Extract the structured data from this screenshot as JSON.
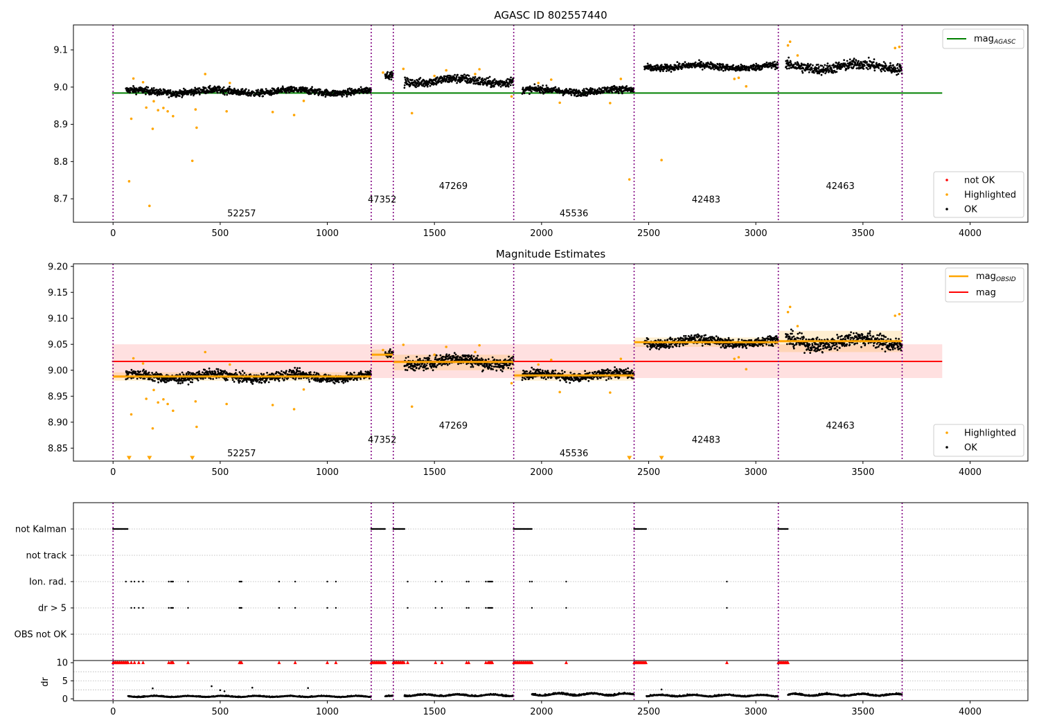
{
  "chart_data": [
    {
      "type": "scatter",
      "title": "AGASC ID 802557440",
      "xlabel": "",
      "ylabel": "",
      "xlim": [
        -185,
        4270
      ],
      "ylim": [
        8.637,
        9.167
      ],
      "xticks": [
        0,
        500,
        1000,
        1500,
        2000,
        2500,
        3000,
        3500,
        4000
      ],
      "yticks": [
        8.7,
        8.8,
        8.9,
        9.0,
        9.1
      ],
      "ytick_labels": [
        "8.7",
        "8.8",
        "8.9",
        "9.0",
        "9.1"
      ],
      "obsid_boundaries": [
        0,
        1205,
        1308,
        1870,
        2432,
        3105,
        3683
      ],
      "obsid_labels": [
        {
          "text": "52257",
          "x": 600,
          "y": 8.66
        },
        {
          "text": "47352",
          "x": 1256,
          "y": 8.697
        },
        {
          "text": "47269",
          "x": 1588,
          "y": 8.734
        },
        {
          "text": "45536",
          "x": 2151,
          "y": 8.66
        },
        {
          "text": "42483",
          "x": 2768,
          "y": 8.697
        },
        {
          "text": "42463",
          "x": 3394,
          "y": 8.734
        }
      ],
      "reference_line": {
        "name": "mag_AGASC",
        "y": 8.984,
        "x0": -5,
        "x1": 3870,
        "color": "#008000"
      },
      "segments": [
        {
          "x0": 60,
          "x1": 1205,
          "mean": 8.988,
          "spread": 0.009
        },
        {
          "x0": 1270,
          "x1": 1308,
          "mean": 9.03,
          "spread": 0.009
        },
        {
          "x0": 1360,
          "x1": 1870,
          "mean": 9.017,
          "spread": 0.012
        },
        {
          "x0": 1910,
          "x1": 2432,
          "mean": 8.99,
          "spread": 0.009
        },
        {
          "x0": 2480,
          "x1": 3105,
          "mean": 9.055,
          "spread": 0.009
        },
        {
          "x0": 3140,
          "x1": 3683,
          "mean": 9.055,
          "spread": 0.014
        }
      ],
      "highlighted_points": [
        [
          75,
          8.747
        ],
        [
          85,
          8.915
        ],
        [
          95,
          9.023
        ],
        [
          140,
          9.013
        ],
        [
          155,
          8.945
        ],
        [
          170,
          8.681
        ],
        [
          185,
          8.888
        ],
        [
          190,
          8.962
        ],
        [
          210,
          8.938
        ],
        [
          235,
          8.944
        ],
        [
          255,
          8.935
        ],
        [
          280,
          8.922
        ],
        [
          370,
          8.802
        ],
        [
          385,
          8.94
        ],
        [
          390,
          8.891
        ],
        [
          430,
          9.035
        ],
        [
          530,
          8.935
        ],
        [
          545,
          9.011
        ],
        [
          745,
          8.933
        ],
        [
          845,
          8.925
        ],
        [
          890,
          8.963
        ],
        [
          1260,
          9.039
        ],
        [
          1355,
          9.049
        ],
        [
          1395,
          8.93
        ],
        [
          1500,
          9.03
        ],
        [
          1555,
          9.045
        ],
        [
          1690,
          9.035
        ],
        [
          1710,
          9.048
        ],
        [
          1860,
          8.975
        ],
        [
          1985,
          9.011
        ],
        [
          2045,
          9.02
        ],
        [
          2085,
          8.958
        ],
        [
          2320,
          8.957
        ],
        [
          2370,
          9.022
        ],
        [
          2410,
          8.752
        ],
        [
          2560,
          8.804
        ],
        [
          2900,
          9.022
        ],
        [
          2920,
          9.025
        ],
        [
          2955,
          9.002
        ],
        [
          3150,
          9.112
        ],
        [
          3160,
          9.122
        ],
        [
          3195,
          9.085
        ],
        [
          3650,
          9.105
        ],
        [
          3670,
          9.108
        ]
      ],
      "legend": {
        "position": "top-right",
        "entries": [
          {
            "label": "mag",
            "sub": "AGASC",
            "color": "#008000"
          }
        ]
      },
      "legend2": {
        "position": "bottom-right",
        "entries": [
          {
            "label": "not OK",
            "color": "#ff0000"
          },
          {
            "label": "Highlighted",
            "color": "#ffa500"
          },
          {
            "label": "OK",
            "color": "#000000"
          }
        ]
      }
    },
    {
      "type": "scatter",
      "title": "Magnitude Estimates",
      "xlabel": "",
      "ylabel": "",
      "xlim": [
        -185,
        4270
      ],
      "ylim": [
        8.825,
        9.205
      ],
      "xticks": [
        0,
        500,
        1000,
        1500,
        2000,
        2500,
        3000,
        3500,
        4000
      ],
      "yticks": [
        8.85,
        8.9,
        8.95,
        9.0,
        9.05,
        9.1,
        9.15,
        9.2
      ],
      "ytick_labels": [
        "8.85",
        "8.90",
        "8.95",
        "9.00",
        "9.05",
        "9.10",
        "9.15",
        "9.20"
      ],
      "obsid_boundaries": [
        0,
        1205,
        1308,
        1870,
        2432,
        3105,
        3683
      ],
      "obsid_labels": [
        {
          "text": "52257",
          "x": 600,
          "y": 8.84
        },
        {
          "text": "47352",
          "x": 1256,
          "y": 8.866
        },
        {
          "text": "47269",
          "x": 1588,
          "y": 8.893
        },
        {
          "text": "45536",
          "x": 2151,
          "y": 8.84
        },
        {
          "text": "42483",
          "x": 2768,
          "y": 8.866
        },
        {
          "text": "42463",
          "x": 3394,
          "y": 8.893
        }
      ],
      "mag_line": {
        "name": "mag",
        "y": 9.017,
        "band": [
          8.985,
          9.05
        ],
        "x0": -5,
        "x1": 3870,
        "color": "#ff0000"
      },
      "obsid_means": [
        {
          "x0": 0,
          "x1": 1205,
          "y": 8.988,
          "band": [
            8.98,
            8.996
          ]
        },
        {
          "x0": 1205,
          "x1": 1308,
          "y": 9.03,
          "band": [
            9.02,
            9.04
          ]
        },
        {
          "x0": 1308,
          "x1": 1870,
          "y": 9.016,
          "band": [
            9.0,
            9.03
          ]
        },
        {
          "x0": 1870,
          "x1": 2432,
          "y": 8.99,
          "band": [
            8.98,
            9.0
          ]
        },
        {
          "x0": 2432,
          "x1": 3105,
          "y": 9.054,
          "band": [
            9.045,
            9.063
          ]
        },
        {
          "x0": 3105,
          "x1": 3683,
          "y": 9.056,
          "band": [
            9.035,
            9.076
          ]
        }
      ],
      "segments": [
        {
          "x0": 60,
          "x1": 1205,
          "mean": 8.988,
          "spread": 0.009
        },
        {
          "x0": 1270,
          "x1": 1308,
          "mean": 9.03,
          "spread": 0.009
        },
        {
          "x0": 1360,
          "x1": 1870,
          "mean": 9.017,
          "spread": 0.012
        },
        {
          "x0": 1910,
          "x1": 2432,
          "mean": 8.99,
          "spread": 0.009
        },
        {
          "x0": 2480,
          "x1": 3105,
          "mean": 9.055,
          "spread": 0.009
        },
        {
          "x0": 3140,
          "x1": 3683,
          "mean": 9.055,
          "spread": 0.014
        }
      ],
      "highlighted_points": [
        [
          85,
          8.915
        ],
        [
          95,
          9.023
        ],
        [
          140,
          9.013
        ],
        [
          155,
          8.945
        ],
        [
          185,
          8.888
        ],
        [
          190,
          8.962
        ],
        [
          210,
          8.938
        ],
        [
          235,
          8.944
        ],
        [
          255,
          8.935
        ],
        [
          280,
          8.922
        ],
        [
          385,
          8.94
        ],
        [
          390,
          8.891
        ],
        [
          430,
          9.035
        ],
        [
          530,
          8.935
        ],
        [
          545,
          9.011
        ],
        [
          745,
          8.933
        ],
        [
          845,
          8.925
        ],
        [
          890,
          8.963
        ],
        [
          1260,
          9.039
        ],
        [
          1355,
          9.049
        ],
        [
          1395,
          8.93
        ],
        [
          1500,
          9.03
        ],
        [
          1555,
          9.045
        ],
        [
          1690,
          9.035
        ],
        [
          1710,
          9.048
        ],
        [
          1860,
          8.975
        ],
        [
          1985,
          9.011
        ],
        [
          2045,
          9.02
        ],
        [
          2085,
          8.958
        ],
        [
          2320,
          8.957
        ],
        [
          2370,
          9.022
        ],
        [
          2900,
          9.022
        ],
        [
          2920,
          9.025
        ],
        [
          2955,
          9.002
        ],
        [
          3150,
          9.112
        ],
        [
          3160,
          9.122
        ],
        [
          3195,
          9.085
        ],
        [
          3650,
          9.105
        ],
        [
          3670,
          9.108
        ]
      ],
      "offscale_markers_x": [
        75,
        170,
        370,
        2410,
        2560
      ],
      "legend": {
        "position": "top-right",
        "entries": [
          {
            "label": "mag",
            "sub": "OBSID",
            "color": "#ffa500"
          },
          {
            "label": "mag",
            "sub": "",
            "color": "#ff0000"
          }
        ]
      },
      "legend2": {
        "position": "bottom-right",
        "entries": [
          {
            "label": "Highlighted",
            "color": "#ffa500"
          },
          {
            "label": "OK",
            "color": "#000000"
          }
        ]
      }
    },
    {
      "type": "scatter",
      "title": "",
      "xlabel": "",
      "ylabel": "",
      "xlim": [
        -185,
        4270
      ],
      "flag_rows": [
        "not Kalman",
        "not track",
        "Ion. rad.",
        "dr > 5",
        "OBS not OK"
      ],
      "obsid_boundaries": [
        0,
        1205,
        1308,
        1870,
        2432,
        3105,
        3683
      ],
      "flag_ranges": {
        "not Kalman": [
          [
            0,
            70
          ],
          [
            1205,
            1270
          ],
          [
            1308,
            1360
          ],
          [
            1870,
            1955
          ],
          [
            2432,
            2490
          ],
          [
            3105,
            3150
          ]
        ],
        "not track": [],
        "OBS not OK": []
      },
      "flag_points": {
        "Ion. rad.": [
          60,
          85,
          100,
          120,
          140,
          260,
          270,
          275,
          280,
          350,
          590,
          595,
          600,
          775,
          850,
          1000,
          1040,
          1375,
          1505,
          1535,
          1650,
          1660,
          1740,
          1750,
          1755,
          1760,
          1765,
          1770,
          1945,
          1955,
          2115,
          2865
        ],
        "dr > 5": [
          85,
          100,
          120,
          140,
          260,
          270,
          275,
          280,
          350,
          590,
          595,
          600,
          775,
          850,
          1000,
          1040,
          1375,
          1505,
          1535,
          1650,
          1660,
          1740,
          1750,
          1755,
          1760,
          1765,
          1770,
          1955,
          2115,
          2865
        ]
      }
    },
    {
      "type": "scatter",
      "title": "",
      "xlabel": "",
      "ylabel": "dr",
      "xlim": [
        -185,
        4270
      ],
      "ylim": [
        -0.5,
        10.6
      ],
      "xticks": [
        0,
        500,
        1000,
        1500,
        2000,
        2500,
        3000,
        3500,
        4000
      ],
      "yticks": [
        0,
        5,
        10
      ],
      "ytick_labels": [
        "0",
        "5",
        "10"
      ],
      "obsid_boundaries": [
        0,
        1205,
        1308,
        1870,
        2432,
        3105,
        3683
      ],
      "capped_value": 10,
      "dr_segments": [
        {
          "x0": 70,
          "x1": 1205,
          "mean": 0.6
        },
        {
          "x0": 1270,
          "x1": 1308,
          "mean": 0.6
        },
        {
          "x0": 1360,
          "x1": 1870,
          "mean": 0.9
        },
        {
          "x0": 1955,
          "x1": 2432,
          "mean": 1.1
        },
        {
          "x0": 2490,
          "x1": 3105,
          "mean": 0.8
        },
        {
          "x0": 3150,
          "x1": 3683,
          "mean": 1.0
        }
      ],
      "dr_outliers": [
        [
          185,
          2.9
        ],
        [
          460,
          3.5
        ],
        [
          500,
          2.4
        ],
        [
          520,
          2.1
        ],
        [
          650,
          3.1
        ],
        [
          910,
          3.0
        ],
        [
          2560,
          2.6
        ]
      ],
      "capped_ranges": [
        [
          0,
          70
        ],
        [
          1205,
          1270
        ],
        [
          1308,
          1360
        ],
        [
          1870,
          1955
        ],
        [
          2432,
          2490
        ],
        [
          3105,
          3150
        ]
      ],
      "capped_points": [
        85,
        100,
        120,
        140,
        260,
        270,
        275,
        280,
        350,
        590,
        595,
        600,
        775,
        850,
        1000,
        1040,
        1375,
        1505,
        1535,
        1650,
        1660,
        1740,
        1750,
        1755,
        1760,
        1765,
        1770,
        2115,
        2865
      ]
    }
  ]
}
